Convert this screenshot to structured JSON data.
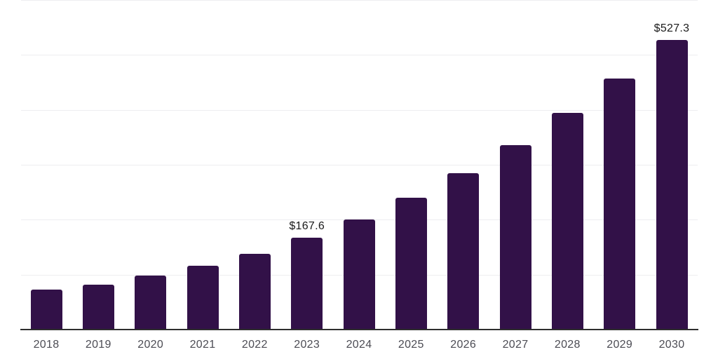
{
  "chart": {
    "background_color": "#ffffff",
    "bar_color": "#321148",
    "axis_line_color": "#2e2e2e",
    "gridline_color": "#ededf0",
    "tick_label_color": "#4c4c54",
    "data_label_color": "#1a1a1a"
  },
  "chart_data": {
    "type": "bar",
    "title": "",
    "xlabel": "",
    "ylabel": "",
    "categories": [
      "2018",
      "2019",
      "2020",
      "2021",
      "2022",
      "2023",
      "2024",
      "2025",
      "2026",
      "2027",
      "2028",
      "2029",
      "2030"
    ],
    "values": [
      72.8,
      82.1,
      98.5,
      116.2,
      138.0,
      167.6,
      200.4,
      240.2,
      284.6,
      335.8,
      394.6,
      457.1,
      527.3
    ],
    "data_labels": [
      "",
      "",
      "",
      "",
      "",
      "$167.6",
      "",
      "",
      "",
      "",
      "",
      "",
      "$527.3"
    ],
    "ylim": [
      0,
      600
    ],
    "gridline_values": [
      100,
      200,
      300,
      400,
      500,
      600
    ],
    "grid": "horizontal",
    "legend_position": "none",
    "y_axis_labels_visible": false
  }
}
